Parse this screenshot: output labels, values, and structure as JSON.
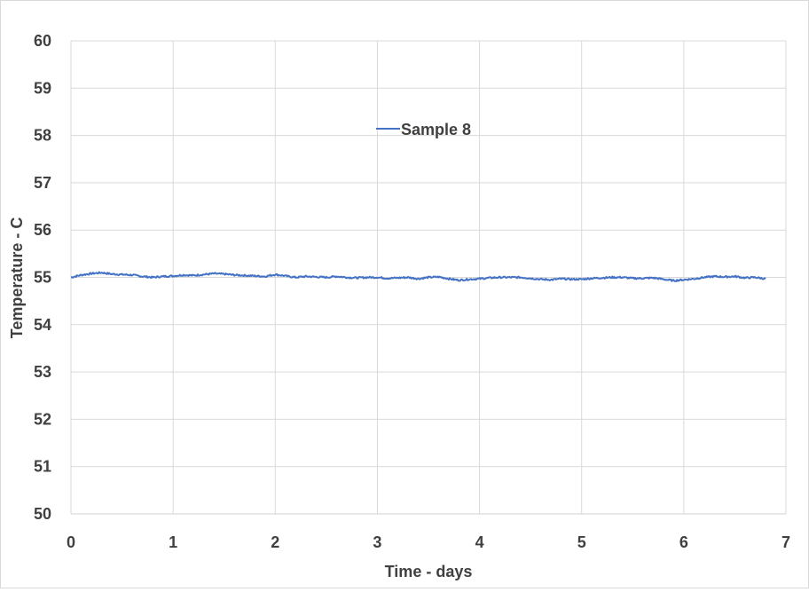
{
  "chart_data": {
    "type": "line",
    "title": "",
    "xlabel": "Time - days",
    "ylabel": "Temperature - C",
    "xlim": [
      0,
      7
    ],
    "ylim": [
      50,
      60
    ],
    "xticks": [
      "0",
      "1",
      "2",
      "3",
      "4",
      "5",
      "6",
      "7"
    ],
    "yticks": [
      "50",
      "51",
      "52",
      "53",
      "54",
      "55",
      "56",
      "57",
      "58",
      "59",
      "60"
    ],
    "grid": true,
    "legend_position": "top-center",
    "series": [
      {
        "name": "Sample 8",
        "color": "#4472c4",
        "x": [
          0,
          0.1,
          0.2,
          0.3,
          0.4,
          0.5,
          0.6,
          0.7,
          0.8,
          0.9,
          1.0,
          1.1,
          1.2,
          1.3,
          1.4,
          1.5,
          1.6,
          1.7,
          1.8,
          1.9,
          2.0,
          2.1,
          2.2,
          2.3,
          2.4,
          2.5,
          2.6,
          2.7,
          2.8,
          2.9,
          3.0,
          3.1,
          3.2,
          3.3,
          3.4,
          3.5,
          3.6,
          3.7,
          3.8,
          3.9,
          4.0,
          4.1,
          4.2,
          4.3,
          4.4,
          4.5,
          4.6,
          4.7,
          4.8,
          4.9,
          5.0,
          5.1,
          5.2,
          5.3,
          5.4,
          5.5,
          5.6,
          5.7,
          5.8,
          5.9,
          6.0,
          6.1,
          6.2,
          6.3,
          6.4,
          6.5,
          6.6,
          6.7,
          6.8
        ],
        "y": [
          55.0,
          55.05,
          55.08,
          55.1,
          55.07,
          55.06,
          55.05,
          55.02,
          55.0,
          55.02,
          55.03,
          55.05,
          55.04,
          55.06,
          55.08,
          55.07,
          55.05,
          55.04,
          55.03,
          55.02,
          55.06,
          55.03,
          55.0,
          55.02,
          55.01,
          55.0,
          55.02,
          55.0,
          54.99,
          55.0,
          55.0,
          54.98,
          54.99,
          55.0,
          54.97,
          55.0,
          55.01,
          54.97,
          54.94,
          54.96,
          54.97,
          54.99,
          55.0,
          55.0,
          55.0,
          54.98,
          54.96,
          54.95,
          54.97,
          54.96,
          54.96,
          54.98,
          54.99,
          55.0,
          55.0,
          54.98,
          54.98,
          54.99,
          54.96,
          54.93,
          54.95,
          54.97,
          55.0,
          55.02,
          55.01,
          55.02,
          54.99,
          55.0,
          54.97
        ]
      }
    ]
  }
}
